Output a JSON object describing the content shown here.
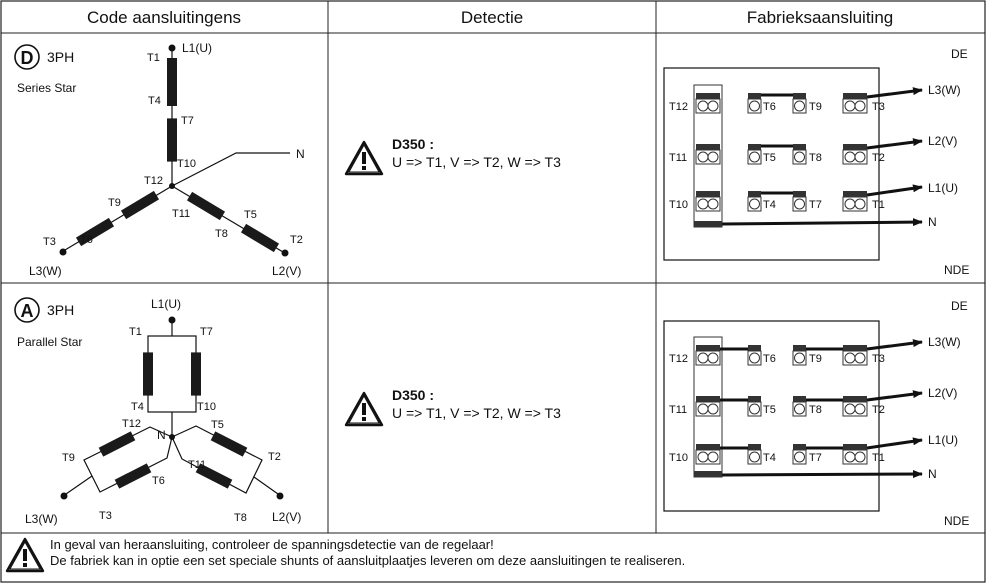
{
  "headers": {
    "code": "Code aansluitingens",
    "detection": "Detectie",
    "factory": "Fabrieksaansluiting"
  },
  "rows": [
    {
      "badge": "D",
      "phase": "3PH",
      "name": "Series Star",
      "labels": {
        "T1": "T1",
        "T2": "T2",
        "T3": "T3",
        "T4": "T4",
        "T5": "T5",
        "T6": "T6",
        "T7": "T7",
        "T8": "T8",
        "T9": "T9",
        "T10": "T10",
        "T11": "T11",
        "T12": "T12",
        "L1": "L1(U)",
        "L2": "L2(V)",
        "L3": "L3(W)",
        "N": "N"
      },
      "detect_title": "D350 :",
      "detect_text": "U => T1, V => T2, W => T3",
      "box": {
        "top": "DE",
        "bottom": "NDE",
        "terms": {
          "T12": "T12",
          "T11": "T11",
          "T10": "T10",
          "T6": "T6",
          "T5": "T5",
          "T4": "T4",
          "T9": "T9",
          "T8": "T8",
          "T7": "T7",
          "T3": "T3",
          "T2": "T2",
          "T1": "T1"
        },
        "out": {
          "L3": "L3(W)",
          "L2": "L2(V)",
          "L1": "L1(U)",
          "N": "N"
        }
      }
    },
    {
      "badge": "A",
      "phase": "3PH",
      "name": "Parallel Star",
      "labels": {
        "T1": "T1",
        "T2": "T2",
        "T3": "T3",
        "T4": "T4",
        "T5": "T5",
        "T6": "T6",
        "T7": "T7",
        "T8": "T8",
        "T9": "T9",
        "T10": "T10",
        "T11": "T11",
        "T12": "T12",
        "L1": "L1(U)",
        "L2": "L2(V)",
        "L3": "L3(W)",
        "N": "N"
      },
      "detect_title": "D350 :",
      "detect_text": "U => T1, V => T2, W => T3",
      "box": {
        "top": "DE",
        "bottom": "NDE",
        "terms": {
          "T12": "T12",
          "T11": "T11",
          "T10": "T10",
          "T6": "T6",
          "T5": "T5",
          "T4": "T4",
          "T9": "T9",
          "T8": "T8",
          "T7": "T7",
          "T3": "T3",
          "T2": "T2",
          "T1": "T1"
        },
        "out": {
          "L3": "L3(W)",
          "L2": "L2(V)",
          "L1": "L1(U)",
          "N": "N"
        }
      }
    }
  ],
  "footer": {
    "line1": "In geval van heraansluiting, controleer de spanningsdetectie van de regelaar!",
    "line2": "De fabriek kan in optie een set speciale shunts of aansluitplaatjes leveren om deze aansluitingen te realiseren."
  },
  "icons": {
    "warning": "warning-triangle-icon",
    "arrow": "arrow-right-icon"
  }
}
